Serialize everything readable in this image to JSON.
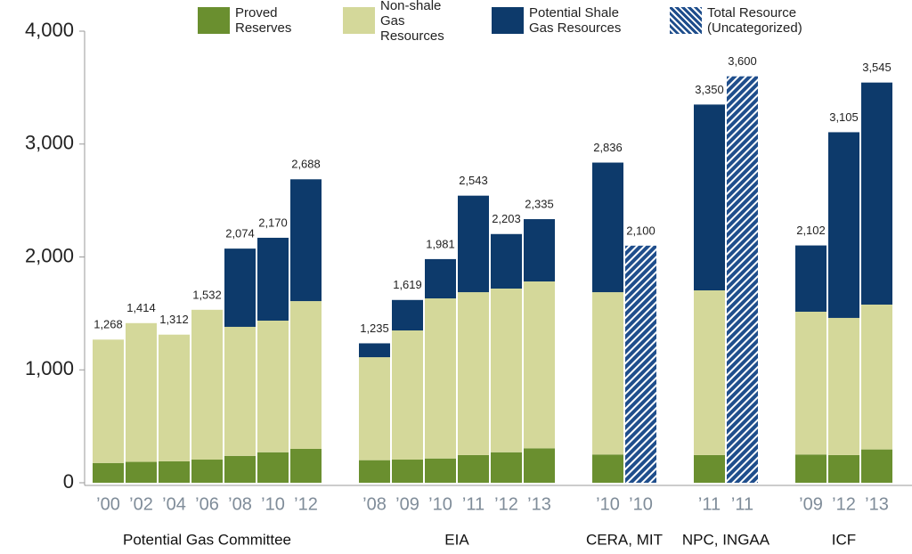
{
  "chart_data": {
    "type": "stacked-bar",
    "groups": [
      {
        "label": "Potential Gas Committee",
        "categories": [
          "’00",
          "’02",
          "’04",
          "’06",
          "’08",
          "’10",
          "’12"
        ]
      },
      {
        "label": "EIA",
        "categories": [
          "’08",
          "’09",
          "’10",
          "’11",
          "’12",
          "’13"
        ]
      },
      {
        "label": "CERA, MIT",
        "categories": [
          "’10",
          "’10"
        ]
      },
      {
        "label": "NPC, INGAA",
        "categories": [
          "’11",
          "’11"
        ]
      },
      {
        "label": "ICF",
        "categories": [
          "’09",
          "’12",
          "’13"
        ]
      }
    ],
    "series": [
      {
        "name": "Proved Reserves",
        "color": "#6a8f2f",
        "values": [
          175,
          185,
          190,
          205,
          238,
          270,
          300,
          200,
          205,
          215,
          245,
          270,
          305,
          250,
          null,
          245,
          null,
          250,
          245,
          295
        ]
      },
      {
        "name": "Non-shale Gas Resources",
        "color": "#d4d89a",
        "values": [
          1093,
          1229,
          1122,
          1327,
          1143,
          1166,
          1309,
          912,
          1144,
          1418,
          1443,
          1450,
          1478,
          1438,
          null,
          1459,
          null,
          1265,
          1215,
          1283
        ]
      },
      {
        "name": "Potential Shale Gas Resources",
        "color": "#0d3a6b",
        "values": [
          null,
          null,
          null,
          null,
          693,
          734,
          1079,
          123,
          270,
          348,
          855,
          483,
          552,
          1148,
          null,
          1646,
          null,
          587,
          1645,
          1967
        ]
      },
      {
        "name": "Total Resource (Uncategorized)",
        "color": "#1f4e8c",
        "hatched": true,
        "values": [
          null,
          null,
          null,
          null,
          null,
          null,
          null,
          null,
          null,
          null,
          null,
          null,
          null,
          null,
          2100,
          null,
          3600,
          null,
          null,
          null
        ]
      }
    ],
    "totals": [
      1268,
      1414,
      1312,
      1532,
      2074,
      2170,
      2688,
      1235,
      1619,
      1981,
      2543,
      2203,
      2335,
      2836,
      2100,
      3350,
      3600,
      2102,
      3105,
      3545
    ],
    "total_labels": [
      "1,268",
      "1,414",
      "1,312",
      "1,532",
      "2,074",
      "2,170",
      "2,688",
      "1,235",
      "1,619",
      "1,981",
      "2,543",
      "2,203",
      "2,335",
      "2,836",
      "2,100",
      "3,350",
      "3,600",
      "2,102",
      "3,105",
      "3,545"
    ],
    "ylim": [
      0,
      4000
    ],
    "yticks": [
      0,
      {
        "value": 1000,
        "label": "1,000"
      },
      {
        "value": 2000,
        "label": "2,000"
      },
      {
        "value": 3000,
        "label": "3,000"
      },
      {
        "value": 4000,
        "label": "4,000"
      }
    ]
  }
}
